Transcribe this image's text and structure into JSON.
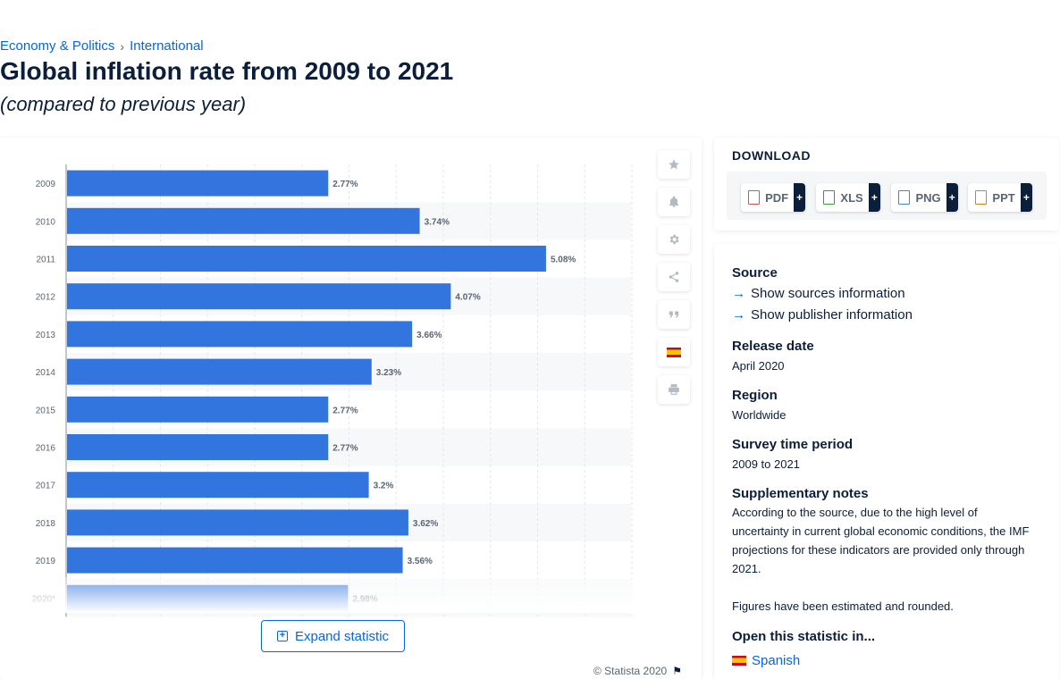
{
  "breadcrumb": {
    "item1": "Economy & Politics",
    "separator": "›",
    "item2": "International"
  },
  "title": "Global inflation rate from 2009 to 2021",
  "subtitle": "(compared to previous year)",
  "chart_data": {
    "type": "bar",
    "orientation": "horizontal",
    "categories": [
      "2009",
      "2010",
      "2011",
      "2012",
      "2013",
      "2014",
      "2015",
      "2016",
      "2017",
      "2018",
      "2019",
      "2020*"
    ],
    "values": [
      2.77,
      3.74,
      5.08,
      4.07,
      3.66,
      3.23,
      2.77,
      2.77,
      3.2,
      3.62,
      3.56,
      2.98
    ],
    "value_labels": [
      "2.77%",
      "3.74%",
      "5.08%",
      "4.07%",
      "3.66%",
      "3.23%",
      "2.77%",
      "2.77%",
      "3.2%",
      "3.62%",
      "3.56%",
      "2.98%"
    ],
    "xlim": [
      0,
      6
    ],
    "grid": true,
    "bar_color": "#3375df",
    "title": "",
    "xlabel": "",
    "ylabel": ""
  },
  "toolbar": {
    "icons": [
      "star-icon",
      "bell-icon",
      "gear-icon",
      "share-icon",
      "quote-icon",
      "spain-flag-icon",
      "print-icon"
    ]
  },
  "expand_label": "Expand statistic",
  "copyright": "© Statista 2020",
  "download": {
    "title": "DOWNLOAD",
    "buttons": [
      {
        "label": "PDF",
        "plus": "+",
        "color": "#d9534f"
      },
      {
        "label": "XLS",
        "plus": "+",
        "color": "#3c9a3c"
      },
      {
        "label": "PNG",
        "plus": "+",
        "color": "#4a86c5"
      },
      {
        "label": "PPT",
        "plus": "+",
        "color": "#e07b22"
      }
    ]
  },
  "info": {
    "source_heading": "Source",
    "show_sources": "Show sources information",
    "show_publisher": "Show publisher information",
    "release_heading": "Release date",
    "release_value": "April 2020",
    "region_heading": "Region",
    "region_value": "Worldwide",
    "period_heading": "Survey time period",
    "period_value": "2009 to 2021",
    "notes_heading": "Supplementary notes",
    "notes_text": "According to the source, due to the high level of uncertainty in current global economic conditions, the IMF projections for these indicators are provided only through 2021.",
    "notes_text2": "Figures have been estimated and rounded.",
    "open_heading": "Open this statistic in...",
    "open_language": "Spanish"
  }
}
